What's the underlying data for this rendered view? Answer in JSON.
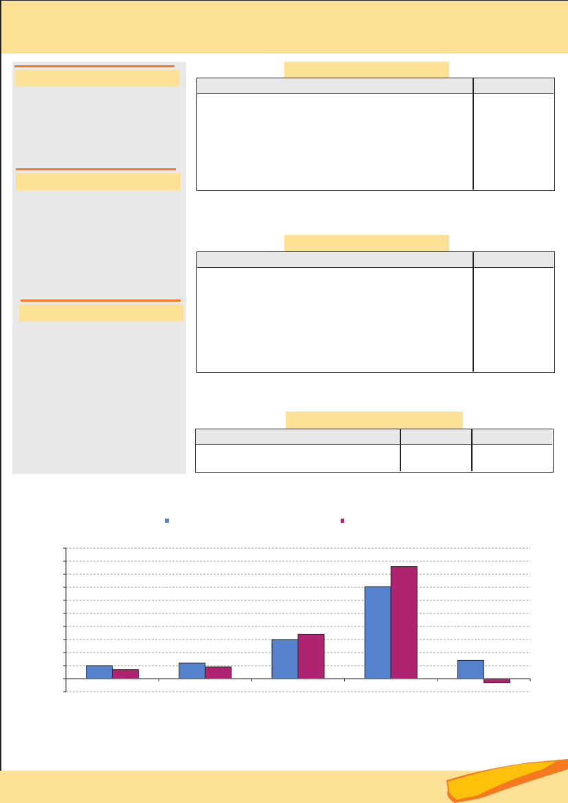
{
  "colors": {
    "header": "#fce196",
    "accent": "#f47920",
    "sidebar": "#e8e8e8",
    "series1": "#5582cc",
    "series2": "#b02370"
  },
  "chart_data": {
    "type": "bar",
    "categories": [
      "",
      "",
      "",
      "",
      ""
    ],
    "series": [
      {
        "values": [
          1.0,
          1.2,
          3.0,
          7.05,
          1.4
        ]
      },
      {
        "values": [
          0.7,
          0.9,
          3.4,
          8.6,
          -0.3
        ]
      }
    ],
    "ylim": [
      -1,
      10
    ],
    "grid": true,
    "legend": "top"
  }
}
